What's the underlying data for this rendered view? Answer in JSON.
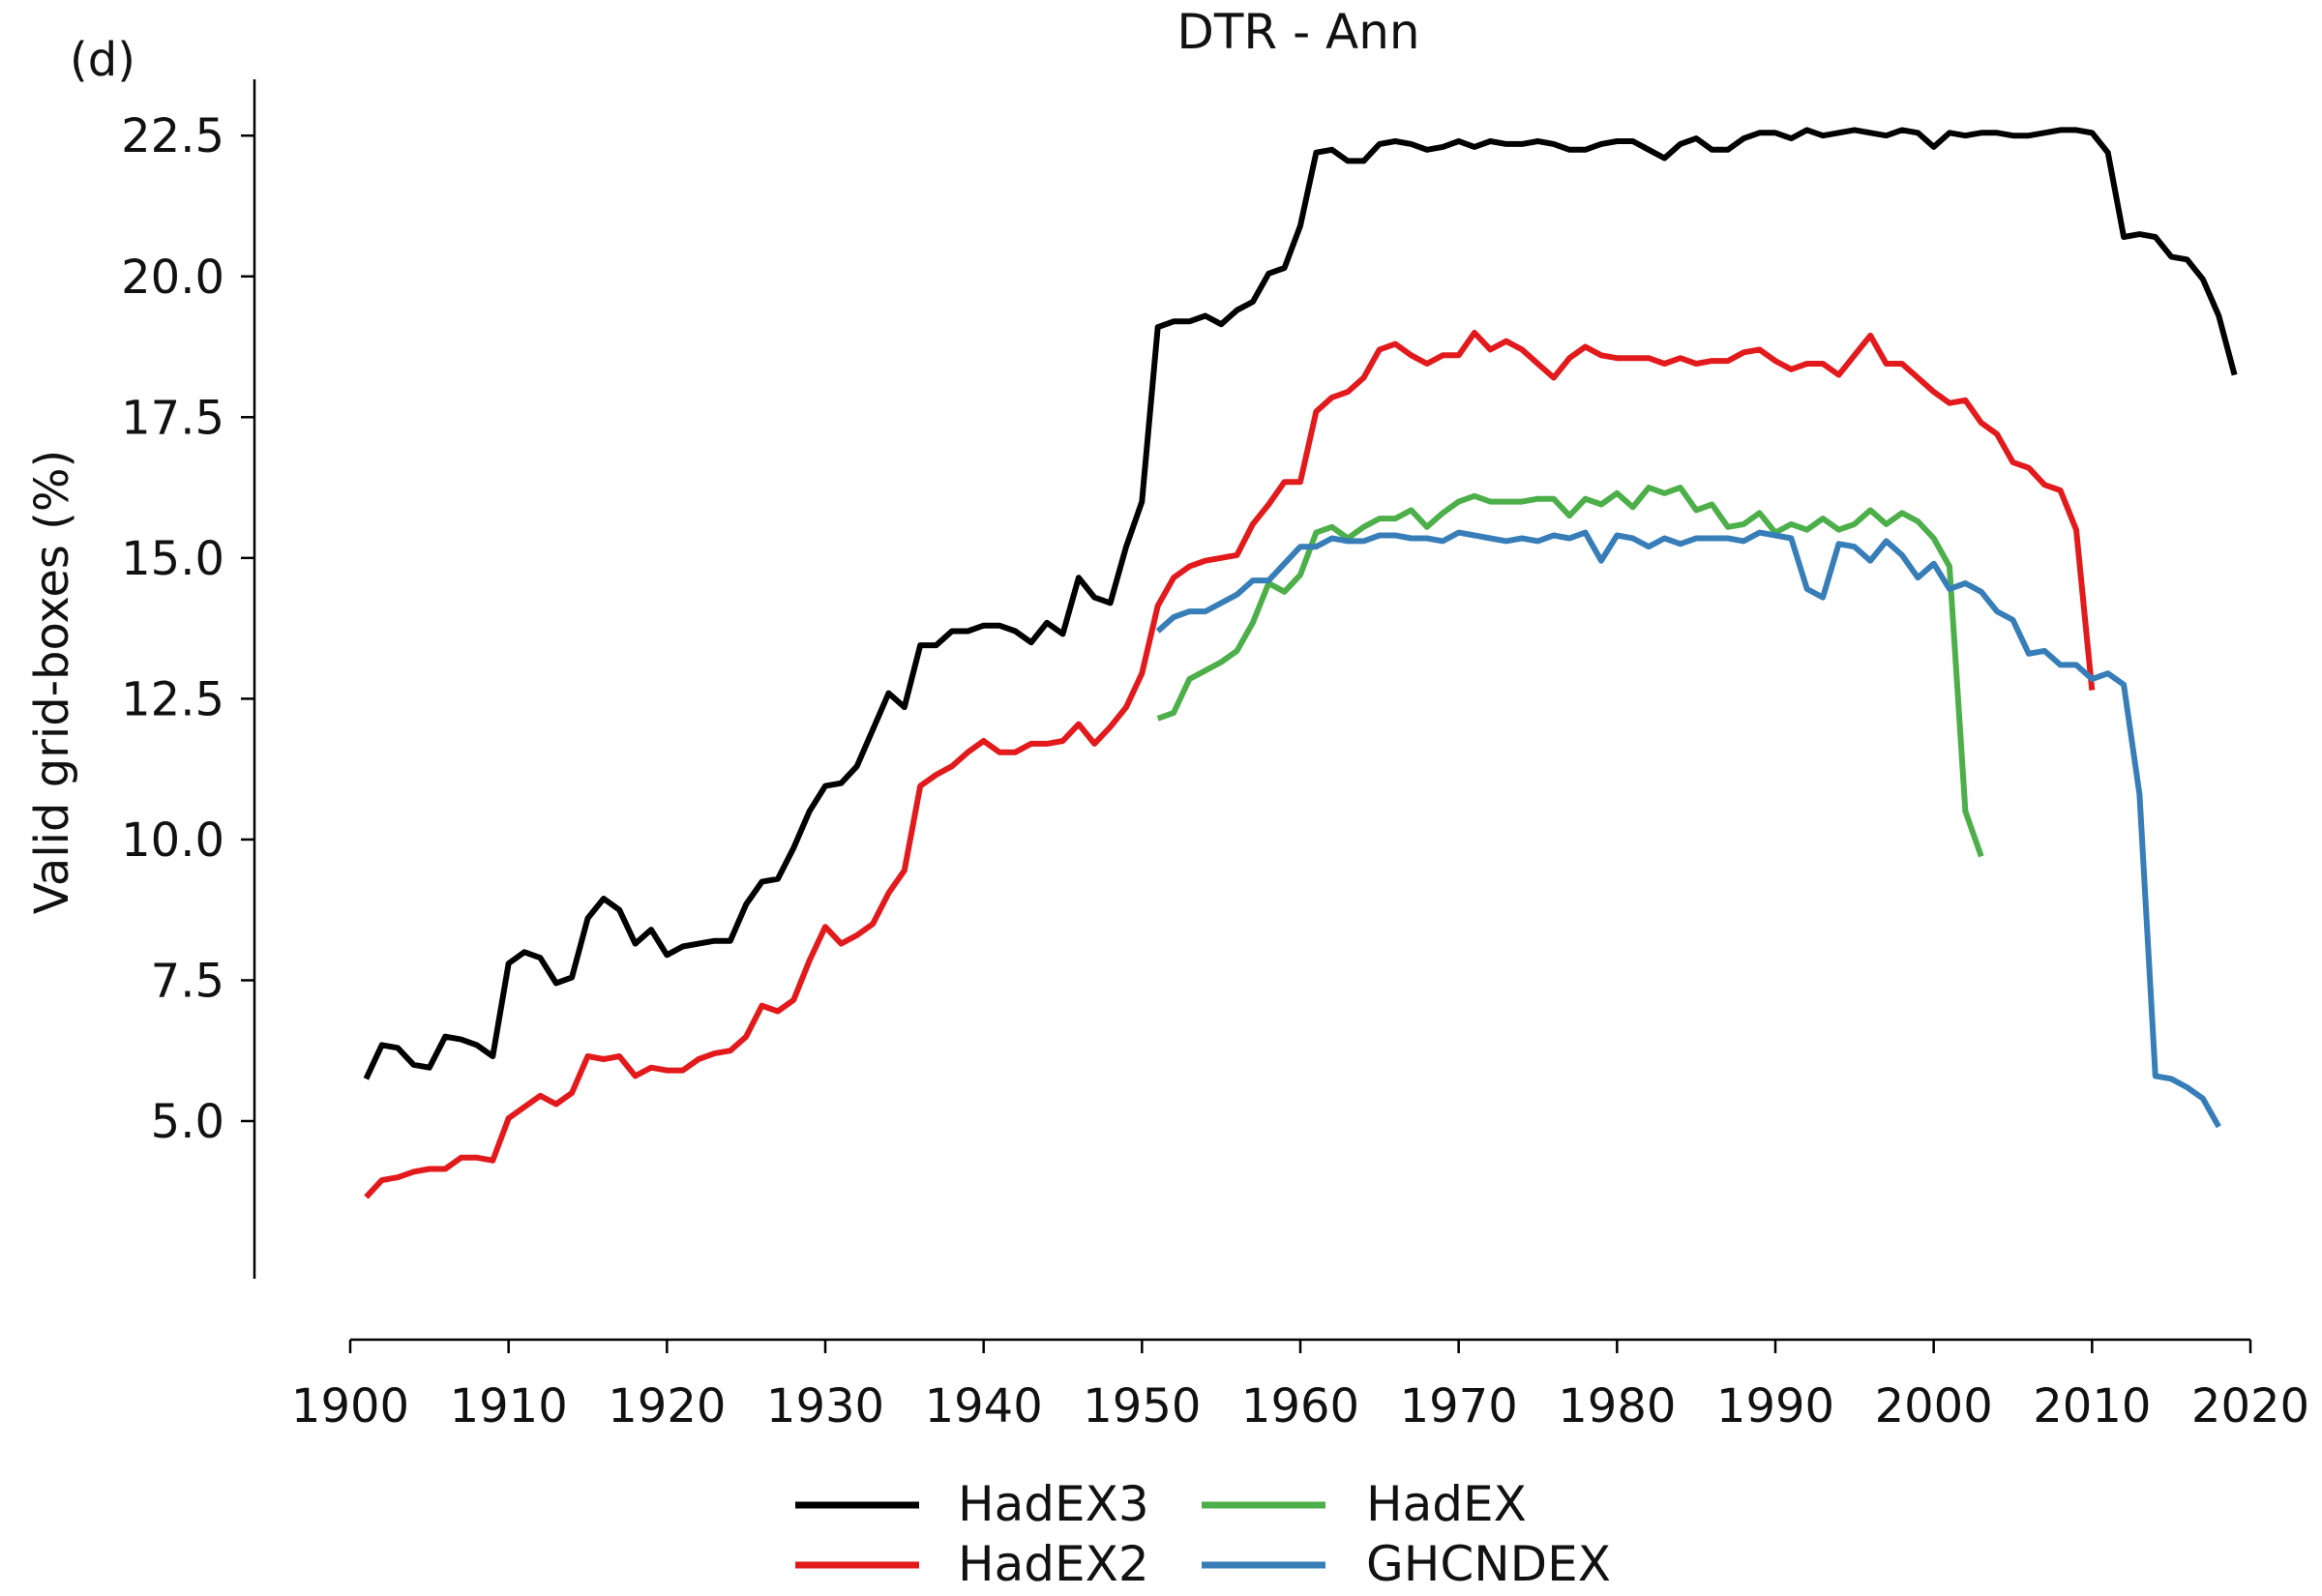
{
  "chart_data": {
    "type": "line",
    "panel_label": "(d)",
    "title": "DTR - Ann",
    "xlabel": "",
    "ylabel": "Valid grid-boxes (%)",
    "xlim": [
      1900,
      2020
    ],
    "ylim": [
      2.2,
      23.5
    ],
    "xticks": [
      1900,
      1910,
      1920,
      1930,
      1940,
      1950,
      1960,
      1970,
      1980,
      1990,
      2000,
      2010,
      2020
    ],
    "yticks": [
      5.0,
      7.5,
      10.0,
      12.5,
      15.0,
      17.5,
      20.0,
      22.5
    ],
    "ytick_labels": [
      "5.0",
      "7.5",
      "10.0",
      "12.5",
      "15.0",
      "17.5",
      "20.0",
      "22.5"
    ],
    "grid": false,
    "legend_position": "bottom-center",
    "series": [
      {
        "name": "HadEX3",
        "color": "#000000",
        "x_start": 1901,
        "values": [
          5.75,
          6.35,
          6.3,
          6.0,
          5.95,
          6.5,
          6.45,
          6.35,
          6.15,
          7.8,
          8.0,
          7.9,
          7.45,
          7.55,
          8.6,
          8.95,
          8.75,
          8.15,
          8.4,
          7.95,
          8.1,
          8.15,
          8.2,
          8.2,
          8.85,
          9.25,
          9.3,
          9.85,
          10.5,
          10.95,
          11.0,
          11.3,
          11.95,
          12.6,
          12.35,
          13.45,
          13.45,
          13.7,
          13.7,
          13.8,
          13.8,
          13.7,
          13.5,
          13.85,
          13.65,
          14.65,
          14.3,
          14.2,
          15.2,
          16.0,
          19.1,
          19.2,
          19.2,
          19.3,
          19.15,
          19.4,
          19.55,
          20.05,
          20.15,
          20.9,
          22.2,
          22.25,
          22.05,
          22.05,
          22.35,
          22.4,
          22.35,
          22.25,
          22.3,
          22.4,
          22.3,
          22.4,
          22.35,
          22.35,
          22.4,
          22.35,
          22.25,
          22.25,
          22.35,
          22.4,
          22.4,
          22.25,
          22.1,
          22.35,
          22.45,
          22.25,
          22.25,
          22.45,
          22.55,
          22.55,
          22.45,
          22.6,
          22.5,
          22.55,
          22.6,
          22.55,
          22.5,
          22.6,
          22.55,
          22.3,
          22.55,
          22.5,
          22.55,
          22.55,
          22.5,
          22.5,
          22.55,
          22.6,
          22.6,
          22.55,
          22.2,
          20.7,
          20.75,
          20.7,
          20.35,
          20.3,
          19.95,
          19.3,
          18.25
        ]
      },
      {
        "name": "HadEX2",
        "color": "#e31a1c",
        "x_start": 1901,
        "values": [
          3.65,
          3.95,
          4.0,
          4.1,
          4.15,
          4.15,
          4.35,
          4.35,
          4.3,
          5.05,
          5.25,
          5.45,
          5.3,
          5.5,
          6.15,
          6.1,
          6.15,
          5.8,
          5.95,
          5.9,
          5.9,
          6.1,
          6.2,
          6.25,
          6.5,
          7.05,
          6.95,
          7.15,
          7.85,
          8.45,
          8.15,
          8.3,
          8.5,
          9.05,
          9.45,
          10.95,
          11.15,
          11.3,
          11.55,
          11.75,
          11.55,
          11.55,
          11.7,
          11.7,
          11.75,
          12.05,
          11.7,
          12.0,
          12.35,
          12.95,
          14.15,
          14.65,
          14.85,
          14.95,
          15.0,
          15.05,
          15.6,
          15.95,
          16.35,
          16.35,
          17.6,
          17.85,
          17.95,
          18.2,
          18.7,
          18.8,
          18.6,
          18.45,
          18.6,
          18.6,
          19.0,
          18.7,
          18.85,
          18.7,
          18.45,
          18.2,
          18.55,
          18.75,
          18.6,
          18.55,
          18.55,
          18.55,
          18.45,
          18.55,
          18.45,
          18.5,
          18.5,
          18.65,
          18.7,
          18.5,
          18.35,
          18.45,
          18.45,
          18.25,
          18.6,
          18.95,
          18.45,
          18.45,
          18.2,
          17.95,
          17.75,
          17.8,
          17.4,
          17.2,
          16.7,
          16.6,
          16.3,
          16.2,
          15.5,
          12.65
        ]
      },
      {
        "name": "HadEX",
        "color": "#4daf4a",
        "x_start": 1951,
        "values": [
          12.15,
          12.25,
          12.85,
          13.0,
          13.15,
          13.35,
          13.85,
          14.55,
          14.4,
          14.7,
          15.45,
          15.55,
          15.35,
          15.55,
          15.7,
          15.7,
          15.85,
          15.55,
          15.8,
          16.0,
          16.1,
          16.0,
          16.0,
          16.0,
          16.05,
          16.05,
          15.75,
          16.05,
          15.95,
          16.15,
          15.9,
          16.25,
          16.15,
          16.25,
          15.85,
          15.95,
          15.55,
          15.6,
          15.8,
          15.45,
          15.6,
          15.5,
          15.7,
          15.5,
          15.6,
          15.85,
          15.6,
          15.8,
          15.65,
          15.35,
          14.85,
          10.5,
          9.7
        ]
      },
      {
        "name": "GHCNDEX",
        "color": "#377eb8",
        "x_start": 1951,
        "values": [
          13.7,
          13.95,
          14.05,
          14.05,
          14.2,
          14.35,
          14.6,
          14.6,
          14.9,
          15.2,
          15.2,
          15.35,
          15.3,
          15.3,
          15.4,
          15.4,
          15.35,
          15.35,
          15.3,
          15.45,
          15.4,
          15.35,
          15.3,
          15.35,
          15.3,
          15.4,
          15.35,
          15.45,
          14.95,
          15.4,
          15.35,
          15.2,
          15.35,
          15.25,
          15.35,
          15.35,
          15.35,
          15.3,
          15.45,
          15.4,
          15.35,
          14.45,
          14.3,
          15.25,
          15.2,
          14.95,
          15.3,
          15.05,
          14.65,
          14.9,
          14.45,
          14.55,
          14.4,
          14.05,
          13.9,
          13.3,
          13.35,
          13.1,
          13.1,
          12.85,
          12.95,
          12.75,
          10.8,
          5.8,
          5.75,
          5.6,
          5.4,
          4.9
        ]
      }
    ]
  }
}
